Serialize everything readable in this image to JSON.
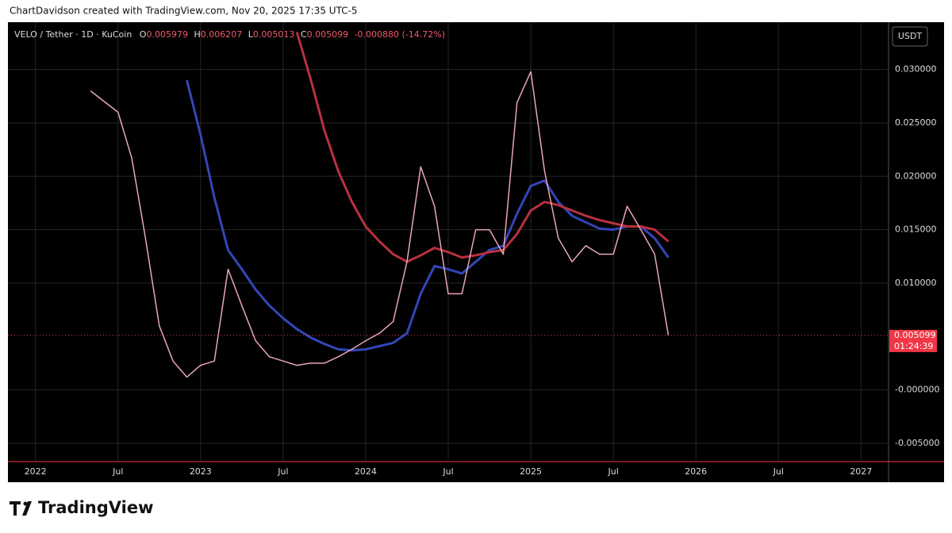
{
  "chart_data": {
    "type": "line",
    "credit": "ChartDavidson created with TradingView.com, Nov 20, 2025 17:35 UTC-5",
    "symbol": "VELO / Tether · 1D · KuCoin",
    "ohlc": [
      {
        "label": "O",
        "value": 0.005979
      },
      {
        "label": "H",
        "value": 0.006207
      },
      {
        "label": "L",
        "value": 0.005013
      },
      {
        "label": "C",
        "value": 0.005099
      }
    ],
    "change": "-0.000880 (-14.72%)",
    "currency": "USDT",
    "last_price": 0.005099,
    "countdown": "01:24:39",
    "brand": "TradingView",
    "x": [
      "2022-05",
      "2022-06",
      "2022-07",
      "2022-08",
      "2022-09",
      "2022-10",
      "2022-11",
      "2022-12",
      "2023-01",
      "2023-02",
      "2023-03",
      "2023-04",
      "2023-05",
      "2023-06",
      "2023-07",
      "2023-08",
      "2023-09",
      "2023-10",
      "2023-11",
      "2023-12",
      "2024-01",
      "2024-02",
      "2024-03",
      "2024-04",
      "2024-05",
      "2024-06",
      "2024-07",
      "2024-08",
      "2024-09",
      "2024-10",
      "2024-11",
      "2024-12",
      "2025-01",
      "2025-02",
      "2025-03",
      "2025-04",
      "2025-05",
      "2025-06",
      "2025-07",
      "2025-08",
      "2025-09",
      "2025-10",
      "2025-11"
    ],
    "series": [
      {
        "color": "#e9a6b6",
        "values": [
          0.028,
          0.027,
          0.026,
          0.0217,
          0.0142,
          0.006,
          0.0027,
          0.0012,
          0.0023,
          0.0027,
          0.0113,
          0.0079,
          0.0046,
          0.0031,
          0.0027,
          0.0023,
          0.0025,
          0.0025,
          0.0031,
          0.0038,
          0.0046,
          0.0053,
          0.0064,
          0.012,
          0.0209,
          0.0172,
          0.009,
          0.009,
          0.015,
          0.015,
          0.0127,
          0.0269,
          0.0298,
          0.0205,
          0.0142,
          0.012,
          0.0135,
          0.0127,
          0.0127,
          0.0172,
          0.015,
          0.0127,
          0.0051
        ]
      },
      {
        "color": "#3346b8",
        "values": [
          null,
          null,
          null,
          null,
          null,
          null,
          null,
          0.029,
          0.0239,
          0.018,
          0.0131,
          0.0113,
          0.0094,
          0.0079,
          0.0067,
          0.0057,
          0.0049,
          0.0043,
          0.0038,
          0.0037,
          0.0038,
          0.0041,
          0.0044,
          0.0053,
          0.009,
          0.0116,
          0.0113,
          0.0109,
          0.012,
          0.0131,
          0.0135,
          0.0165,
          0.0191,
          0.0196,
          0.0176,
          0.0163,
          0.0157,
          0.0151,
          0.015,
          0.0153,
          0.0153,
          0.0142,
          0.0124
        ]
      },
      {
        "color": "#b8313f",
        "values": [
          null,
          null,
          null,
          null,
          null,
          null,
          null,
          null,
          null,
          null,
          null,
          null,
          null,
          null,
          null,
          0.0335,
          0.0291,
          0.0243,
          0.0205,
          0.0176,
          0.0153,
          0.0139,
          0.0127,
          0.012,
          0.0126,
          0.0133,
          0.0129,
          0.0124,
          0.0126,
          0.0129,
          0.0131,
          0.0146,
          0.0168,
          0.0176,
          0.0173,
          0.0168,
          0.0163,
          0.0159,
          0.0156,
          0.0153,
          0.0153,
          0.015,
          0.0139
        ]
      }
    ],
    "xlim": [
      "2021-11",
      "2027-03"
    ],
    "xticks": [
      {
        "value": "2022-01",
        "label": "2022"
      },
      {
        "value": "2022-07",
        "label": "Jul"
      },
      {
        "value": "2023-01",
        "label": "2023"
      },
      {
        "value": "2023-07",
        "label": "Jul"
      },
      {
        "value": "2024-01",
        "label": "2024"
      },
      {
        "value": "2024-07",
        "label": "Jul"
      },
      {
        "value": "2025-01",
        "label": "2025"
      },
      {
        "value": "2025-07",
        "label": "Jul"
      },
      {
        "value": "2026-01",
        "label": "2026"
      },
      {
        "value": "2026-07",
        "label": "Jul"
      },
      {
        "value": "2027-01",
        "label": "2027"
      }
    ],
    "ylim": [
      -0.00672,
      0.03443
    ],
    "yticks": [
      {
        "value": -0.005,
        "label": "-0.005000"
      },
      {
        "value": 0,
        "label": "-0.000000"
      },
      {
        "value": 0.01,
        "label": "0.010000"
      },
      {
        "value": 0.015,
        "label": "0.015000"
      },
      {
        "value": 0.02,
        "label": "0.020000"
      },
      {
        "value": 0.025,
        "label": "0.025000"
      },
      {
        "value": 0.03,
        "label": "0.030000"
      }
    ],
    "grid": true
  }
}
